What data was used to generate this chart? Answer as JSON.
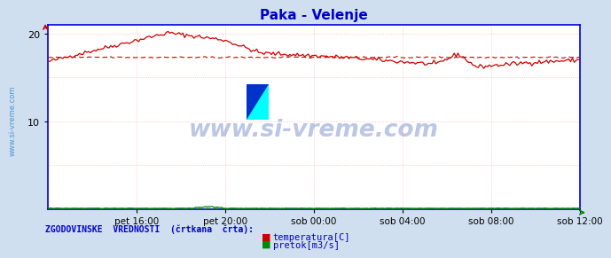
{
  "title": "Paka - Velenje",
  "title_color": "#0000cc",
  "bg_color": "#d0dff0",
  "plot_bg_color": "#ffffff",
  "grid_color": "#ffbbbb",
  "axis_color": "#0000dd",
  "ylim": [
    0,
    21
  ],
  "yticks": [
    10,
    20
  ],
  "xlim": [
    0,
    288
  ],
  "xtick_labels": [
    "pet 16:00",
    "pet 20:00",
    "sob 00:00",
    "sob 04:00",
    "sob 08:00",
    "sob 12:00"
  ],
  "xtick_positions": [
    48,
    96,
    144,
    192,
    240,
    288
  ],
  "grid_xtick_positions": [
    0,
    48,
    96,
    144,
    192,
    240,
    288
  ],
  "grid_ytick_positions": [
    0,
    5,
    10,
    15,
    20
  ],
  "watermark": "www.si-vreme.com",
  "watermark_color": "#2244aa",
  "watermark_alpha": 0.3,
  "temp_color": "#cc0000",
  "flow_color": "#008800",
  "legend_text": "ZGODOVINSKE  VREDNOSTI  (črtkana  črta):",
  "legend_color": "#0000cc",
  "legend_items": [
    "temperatura[C]",
    "pretok[m3/s]"
  ],
  "legend_item_colors": [
    "#cc0000",
    "#008800"
  ],
  "sidebar_text": "www.si-vreme.com",
  "sidebar_color": "#3388cc"
}
